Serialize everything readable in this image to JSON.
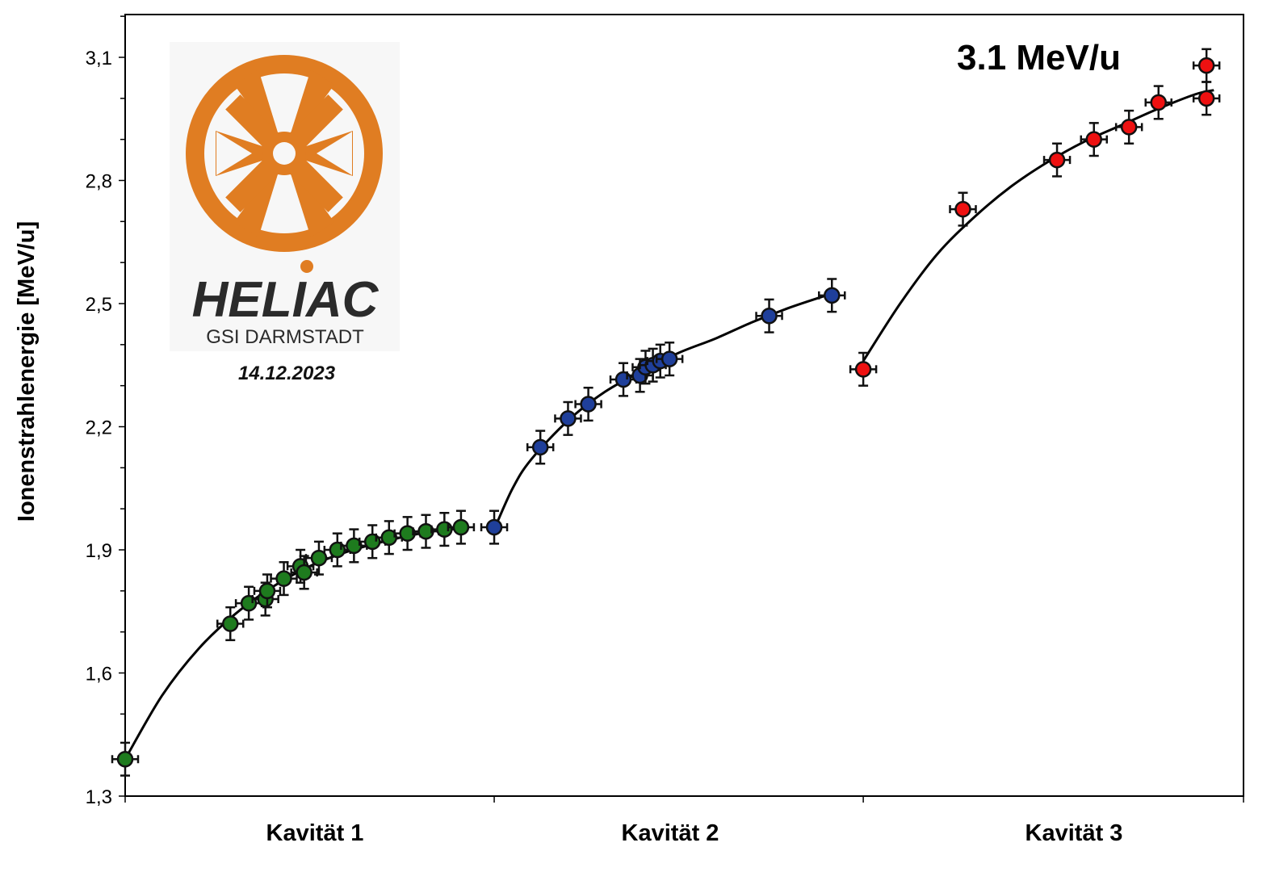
{
  "chart_data": {
    "type": "scatter",
    "ylabel": "Ionenstrahlenergie [MeV/u]",
    "ylim": [
      1.3,
      3.2
    ],
    "yticks": [
      "1,3",
      "1,6",
      "1,9",
      "2,2",
      "2,5",
      "2,8",
      "3,1"
    ],
    "ytick_values": [
      1.3,
      1.6,
      1.9,
      2.2,
      2.5,
      2.8,
      3.1
    ],
    "xlim": [
      0,
      3
    ],
    "categories": [
      "Kavität  1",
      "Kavität 2",
      "Kavität 3"
    ],
    "grid": false,
    "annotation": "3.1 MeV/u",
    "series": [
      {
        "color": "#1e7b1e",
        "x": [
          0.0,
          0.285,
          0.335,
          0.38,
          0.385,
          0.43,
          0.475,
          0.485,
          0.525,
          0.575,
          0.62,
          0.67,
          0.715,
          0.765,
          0.815,
          0.865,
          0.91
        ],
        "y": [
          1.39,
          1.72,
          1.77,
          1.78,
          1.8,
          1.83,
          1.86,
          1.845,
          1.88,
          1.9,
          1.91,
          1.92,
          1.93,
          1.94,
          1.945,
          1.95,
          1.955
        ],
        "yerr": 0.04,
        "xerr": 0.035
      },
      {
        "color": "#1f3f9a",
        "x": [
          1.0,
          1.125,
          1.2,
          1.255,
          1.35,
          1.395,
          1.41,
          1.43,
          1.45,
          1.475,
          1.745,
          1.915
        ],
        "y": [
          1.955,
          2.15,
          2.22,
          2.255,
          2.315,
          2.325,
          2.345,
          2.35,
          2.36,
          2.365,
          2.47,
          2.52
        ],
        "yerr": 0.04,
        "xerr": 0.035
      },
      {
        "color": "#ee1111",
        "x": [
          2.0,
          2.27,
          2.525,
          2.625,
          2.72,
          2.8,
          2.93,
          2.93
        ],
        "y": [
          2.34,
          2.73,
          2.85,
          2.9,
          2.93,
          2.99,
          3.08,
          3.0
        ],
        "yerr": 0.04,
        "xerr": 0.035
      }
    ],
    "fit_curves": [
      {
        "x": [
          0.0,
          0.1,
          0.2,
          0.3,
          0.4,
          0.5,
          0.6,
          0.7,
          0.8,
          0.9
        ],
        "y": [
          1.39,
          1.545,
          1.66,
          1.745,
          1.81,
          1.86,
          1.895,
          1.92,
          1.94,
          1.955
        ]
      },
      {
        "x": [
          1.0,
          1.05,
          1.1,
          1.2,
          1.3,
          1.4,
          1.5,
          1.6,
          1.7,
          1.8,
          1.9
        ],
        "y": [
          1.95,
          2.05,
          2.12,
          2.215,
          2.285,
          2.335,
          2.38,
          2.415,
          2.455,
          2.49,
          2.52
        ]
      },
      {
        "x": [
          2.0,
          2.1,
          2.2,
          2.3,
          2.4,
          2.5,
          2.6,
          2.7,
          2.8,
          2.9,
          2.95
        ],
        "y": [
          2.36,
          2.5,
          2.62,
          2.71,
          2.785,
          2.845,
          2.895,
          2.935,
          2.975,
          3.01,
          3.02
        ]
      }
    ]
  },
  "logo": {
    "name": "HELIAC",
    "subtitle": "GSI DARMSTADT",
    "date": "14.12.2023",
    "color": "#e07d22"
  }
}
